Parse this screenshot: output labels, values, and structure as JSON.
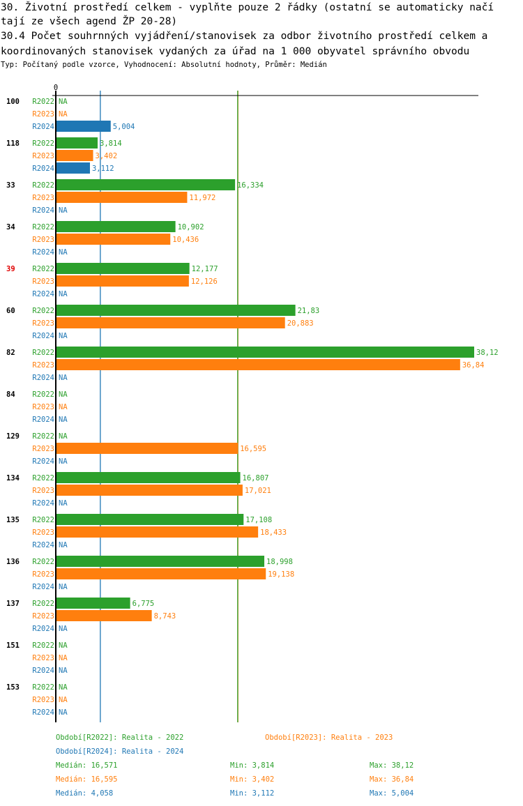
{
  "title_line1": "30. Životní prostředí celkem - vyplňte pouze 2 řádky (ostatní se automaticky načí",
  "title_line2": "tají ze všech agend ŽP 20-28)",
  "subtitle_line1": "30.4 Počet souhrnných vyjádření/stanovisek za odbor životního prostředí celkem a",
  "subtitle_line2": "koordinovaných stanovisek vydaných za úřad na 1 000 obyvatel správního obvodu",
  "info": "Typ: Počítaný podle vzorce, Vyhodnocení: Absolutní hodnoty, Průměr: Medián",
  "chart_data": {
    "type": "bar",
    "orientation": "horizontal",
    "x_tick_labels": [
      "0"
    ],
    "xlim": [
      0,
      38.12
    ],
    "categories": [
      "100",
      "118",
      "33",
      "34",
      "39",
      "60",
      "82",
      "84",
      "129",
      "134",
      "135",
      "136",
      "137",
      "151",
      "153"
    ],
    "highlighted_category": "39",
    "series": [
      {
        "name": "R2022",
        "color": "#2ca02c",
        "values": [
          null,
          3.814,
          16.334,
          10.902,
          12.177,
          21.83,
          38.12,
          null,
          null,
          16.807,
          17.108,
          18.998,
          6.775,
          null,
          null
        ],
        "labels": [
          "NA",
          "3,814",
          "16,334",
          "10,902",
          "12,177",
          "21,83",
          "38,12",
          "NA",
          "NA",
          "16,807",
          "17,108",
          "18,998",
          "6,775",
          "NA",
          "NA"
        ]
      },
      {
        "name": "R2023",
        "color": "#ff7f0e",
        "values": [
          null,
          3.402,
          11.972,
          10.436,
          12.126,
          20.883,
          36.84,
          null,
          16.595,
          17.021,
          18.433,
          19.138,
          8.743,
          null,
          null
        ],
        "labels": [
          "NA",
          "3,402",
          "11,972",
          "10,436",
          "12,126",
          "20,883",
          "36,84",
          "NA",
          "16,595",
          "17,021",
          "18,433",
          "19,138",
          "8,743",
          "NA",
          "NA"
        ]
      },
      {
        "name": "R2024",
        "color": "#1f77b4",
        "values": [
          5.004,
          3.112,
          null,
          null,
          null,
          null,
          null,
          null,
          null,
          null,
          null,
          null,
          null,
          null,
          null
        ],
        "labels": [
          "5,004",
          "3,112",
          "NA",
          "NA",
          "NA",
          "NA",
          "NA",
          "NA",
          "NA",
          "NA",
          "NA",
          "NA",
          "NA",
          "NA",
          "NA"
        ]
      }
    ],
    "median_lines": [
      {
        "series": "R2024",
        "value": 4.058
      },
      {
        "series": "R2023",
        "value": 16.595
      },
      {
        "series": "R2022",
        "value": 16.571
      }
    ],
    "legend": [
      {
        "text": "Období[R2022]: Realita - 2022",
        "color": "#2ca02c"
      },
      {
        "text": "Období[R2023]: Realita - 2023",
        "color": "#ff7f0e"
      },
      {
        "text": "Období[R2024]: Realita - 2024",
        "color": "#1f77b4"
      }
    ],
    "stats": [
      {
        "median": "Medián: 16,571",
        "min": "Min: 3,814",
        "max": "Max: 38,12",
        "color": "#2ca02c"
      },
      {
        "median": "Medián: 16,595",
        "min": "Min: 3,402",
        "max": "Max: 36,84",
        "color": "#ff7f0e"
      },
      {
        "median": "Medián: 4,058",
        "min": "Min: 3,112",
        "max": "Max: 5,004",
        "color": "#1f77b4"
      }
    ]
  }
}
